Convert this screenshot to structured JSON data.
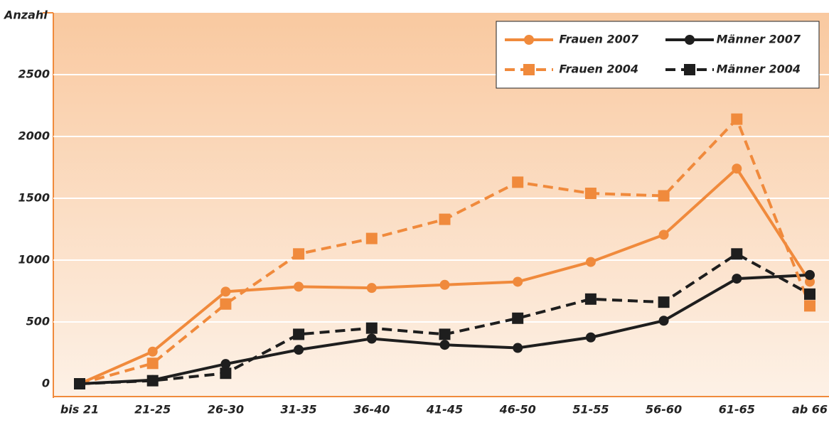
{
  "chart_data": {
    "type": "line",
    "y_label": "Anzahl",
    "categories": [
      "bis 21",
      "21-25",
      "26-30",
      "31-35",
      "36-40",
      "41-45",
      "46-50",
      "51-55",
      "56-60",
      "61-65",
      "ab 66"
    ],
    "series": [
      {
        "name": "Frauen 2007",
        "color": "#f08a3c",
        "dash": false,
        "marker": "circle",
        "values": [
          0,
          260,
          745,
          785,
          775,
          800,
          825,
          985,
          1205,
          1740,
          825
        ]
      },
      {
        "name": "Männer 2007",
        "color": "#1e1e1e",
        "dash": false,
        "marker": "circle",
        "values": [
          0,
          30,
          160,
          275,
          365,
          315,
          290,
          375,
          510,
          850,
          880
        ]
      },
      {
        "name": "Frauen 2004",
        "color": "#f08a3c",
        "dash": true,
        "marker": "square",
        "values": [
          0,
          165,
          645,
          1050,
          1175,
          1330,
          1630,
          1540,
          1520,
          2140,
          630
        ]
      },
      {
        "name": "Männer 2004",
        "color": "#1e1e1e",
        "dash": true,
        "marker": "square",
        "values": [
          0,
          25,
          85,
          400,
          450,
          400,
          530,
          685,
          660,
          1050,
          725
        ]
      }
    ],
    "ylim": [
      0,
      3000
    ],
    "yticks": [
      0,
      500,
      1000,
      1500,
      2000,
      2500
    ],
    "grid": true
  }
}
